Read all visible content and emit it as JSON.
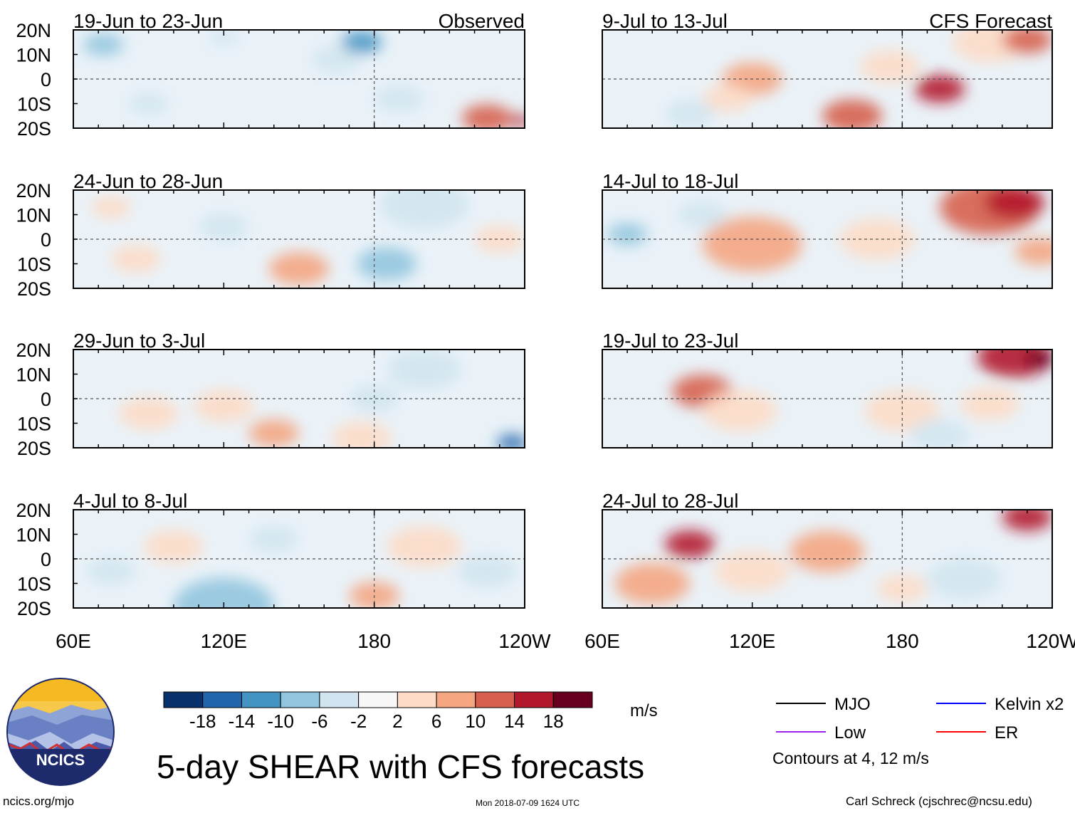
{
  "chart_data": {
    "type": "heatmap",
    "title": "5-day SHEAR with CFS forecasts",
    "units": "m/s",
    "observed_label": "Observed",
    "forecast_label": "CFS Forecast",
    "x_ticks": [
      "60E",
      "120E",
      "180",
      "120W"
    ],
    "y_ticks": [
      "20N",
      "10N",
      "0",
      "10S",
      "20S"
    ],
    "xlim": [
      60,
      240
    ],
    "ylim": [
      -20,
      20
    ],
    "panels": [
      {
        "period": "19-Jun to 23-Jun",
        "group": "observed",
        "blobs": [
          [
            72,
            14,
            8,
            -6
          ],
          [
            120,
            17,
            6,
            -5
          ],
          [
            225,
            -16,
            10,
            12
          ],
          [
            238,
            -17,
            4,
            16
          ],
          [
            165,
            8,
            10,
            -4
          ],
          [
            175,
            15,
            8,
            -12
          ],
          [
            190,
            -8,
            10,
            -5
          ],
          [
            90,
            -10,
            8,
            -4
          ]
        ]
      },
      {
        "period": "24-Jun to 28-Jun",
        "group": "observed",
        "blobs": [
          [
            75,
            13,
            8,
            6
          ],
          [
            85,
            -8,
            10,
            5
          ],
          [
            150,
            -12,
            12,
            7
          ],
          [
            120,
            5,
            10,
            -5
          ],
          [
            200,
            14,
            18,
            -5
          ],
          [
            185,
            -10,
            12,
            -6
          ],
          [
            230,
            0,
            10,
            4
          ]
        ]
      },
      {
        "period": "29-Jun to 3-Jul",
        "group": "observed",
        "blobs": [
          [
            140,
            -14,
            10,
            10
          ],
          [
            175,
            -16,
            12,
            5
          ],
          [
            235,
            -18,
            6,
            -16
          ],
          [
            120,
            -3,
            12,
            5
          ],
          [
            200,
            12,
            15,
            -5
          ],
          [
            180,
            0,
            10,
            -4
          ],
          [
            90,
            -6,
            12,
            4
          ]
        ]
      },
      {
        "period": "4-Jul to 8-Jul",
        "group": "observed",
        "blobs": [
          [
            180,
            -15,
            10,
            10
          ],
          [
            120,
            -19,
            20,
            -8
          ],
          [
            100,
            5,
            12,
            4
          ],
          [
            200,
            5,
            15,
            3
          ],
          [
            140,
            8,
            10,
            -4
          ],
          [
            75,
            -5,
            10,
            -4
          ],
          [
            225,
            -5,
            12,
            -3
          ]
        ]
      },
      {
        "period": "9-Jul to 13-Jul",
        "group": "forecast",
        "blobs": [
          [
            195,
            -4,
            10,
            16
          ],
          [
            160,
            -15,
            12,
            12
          ],
          [
            215,
            15,
            15,
            6
          ],
          [
            230,
            16,
            10,
            14
          ],
          [
            120,
            0,
            12,
            8
          ],
          [
            110,
            -8,
            10,
            6
          ],
          [
            95,
            -14,
            10,
            -4
          ],
          [
            175,
            5,
            12,
            4
          ]
        ]
      },
      {
        "period": "14-Jul to 18-Jul",
        "group": "forecast",
        "blobs": [
          [
            215,
            13,
            20,
            14
          ],
          [
            225,
            15,
            12,
            18
          ],
          [
            120,
            -2,
            20,
            8
          ],
          [
            235,
            -5,
            10,
            10
          ],
          [
            70,
            2,
            8,
            -6
          ],
          [
            100,
            10,
            10,
            -4
          ],
          [
            170,
            0,
            15,
            4
          ]
        ]
      },
      {
        "period": "19-Jul to 23-Jul",
        "group": "forecast",
        "blobs": [
          [
            225,
            17,
            15,
            16
          ],
          [
            235,
            16,
            6,
            20
          ],
          [
            100,
            3,
            12,
            12
          ],
          [
            115,
            -5,
            15,
            6
          ],
          [
            180,
            -5,
            15,
            4
          ],
          [
            215,
            -2,
            12,
            5
          ],
          [
            195,
            -15,
            12,
            -4
          ]
        ]
      },
      {
        "period": "24-Jul to 28-Jul",
        "group": "forecast",
        "blobs": [
          [
            95,
            6,
            10,
            16
          ],
          [
            80,
            -10,
            15,
            10
          ],
          [
            150,
            3,
            15,
            10
          ],
          [
            230,
            17,
            10,
            18
          ],
          [
            120,
            -5,
            15,
            6
          ],
          [
            205,
            -8,
            15,
            -4
          ],
          [
            180,
            -12,
            10,
            4
          ]
        ]
      }
    ],
    "colorbar": {
      "labels": [
        "-18",
        "-14",
        "-10",
        "-6",
        "-2",
        "2",
        "6",
        "10",
        "14",
        "18"
      ],
      "colors": [
        "#08306b",
        "#2166ac",
        "#4393c3",
        "#92c5de",
        "#d1e5f0",
        "#f7f7f7",
        "#fddbc7",
        "#f4a582",
        "#d6604d",
        "#b2182b",
        "#67001f"
      ]
    },
    "legend": [
      {
        "label": "MJO",
        "color": "#000000"
      },
      {
        "label": "Kelvin x2",
        "color": "#0000ff"
      },
      {
        "label": "Low",
        "color": "#a020f0"
      },
      {
        "label": "ER",
        "color": "#ff0000"
      }
    ],
    "contour_note": "Contours at 4, 12 m/s"
  },
  "logo": {
    "text": "NCICS"
  },
  "footer": {
    "url": "ncics.org/mjo",
    "timestamp": "Mon 2018-07-09 1624 UTC",
    "author": "Carl Schreck (cjschrec@ncsu.edu)"
  }
}
